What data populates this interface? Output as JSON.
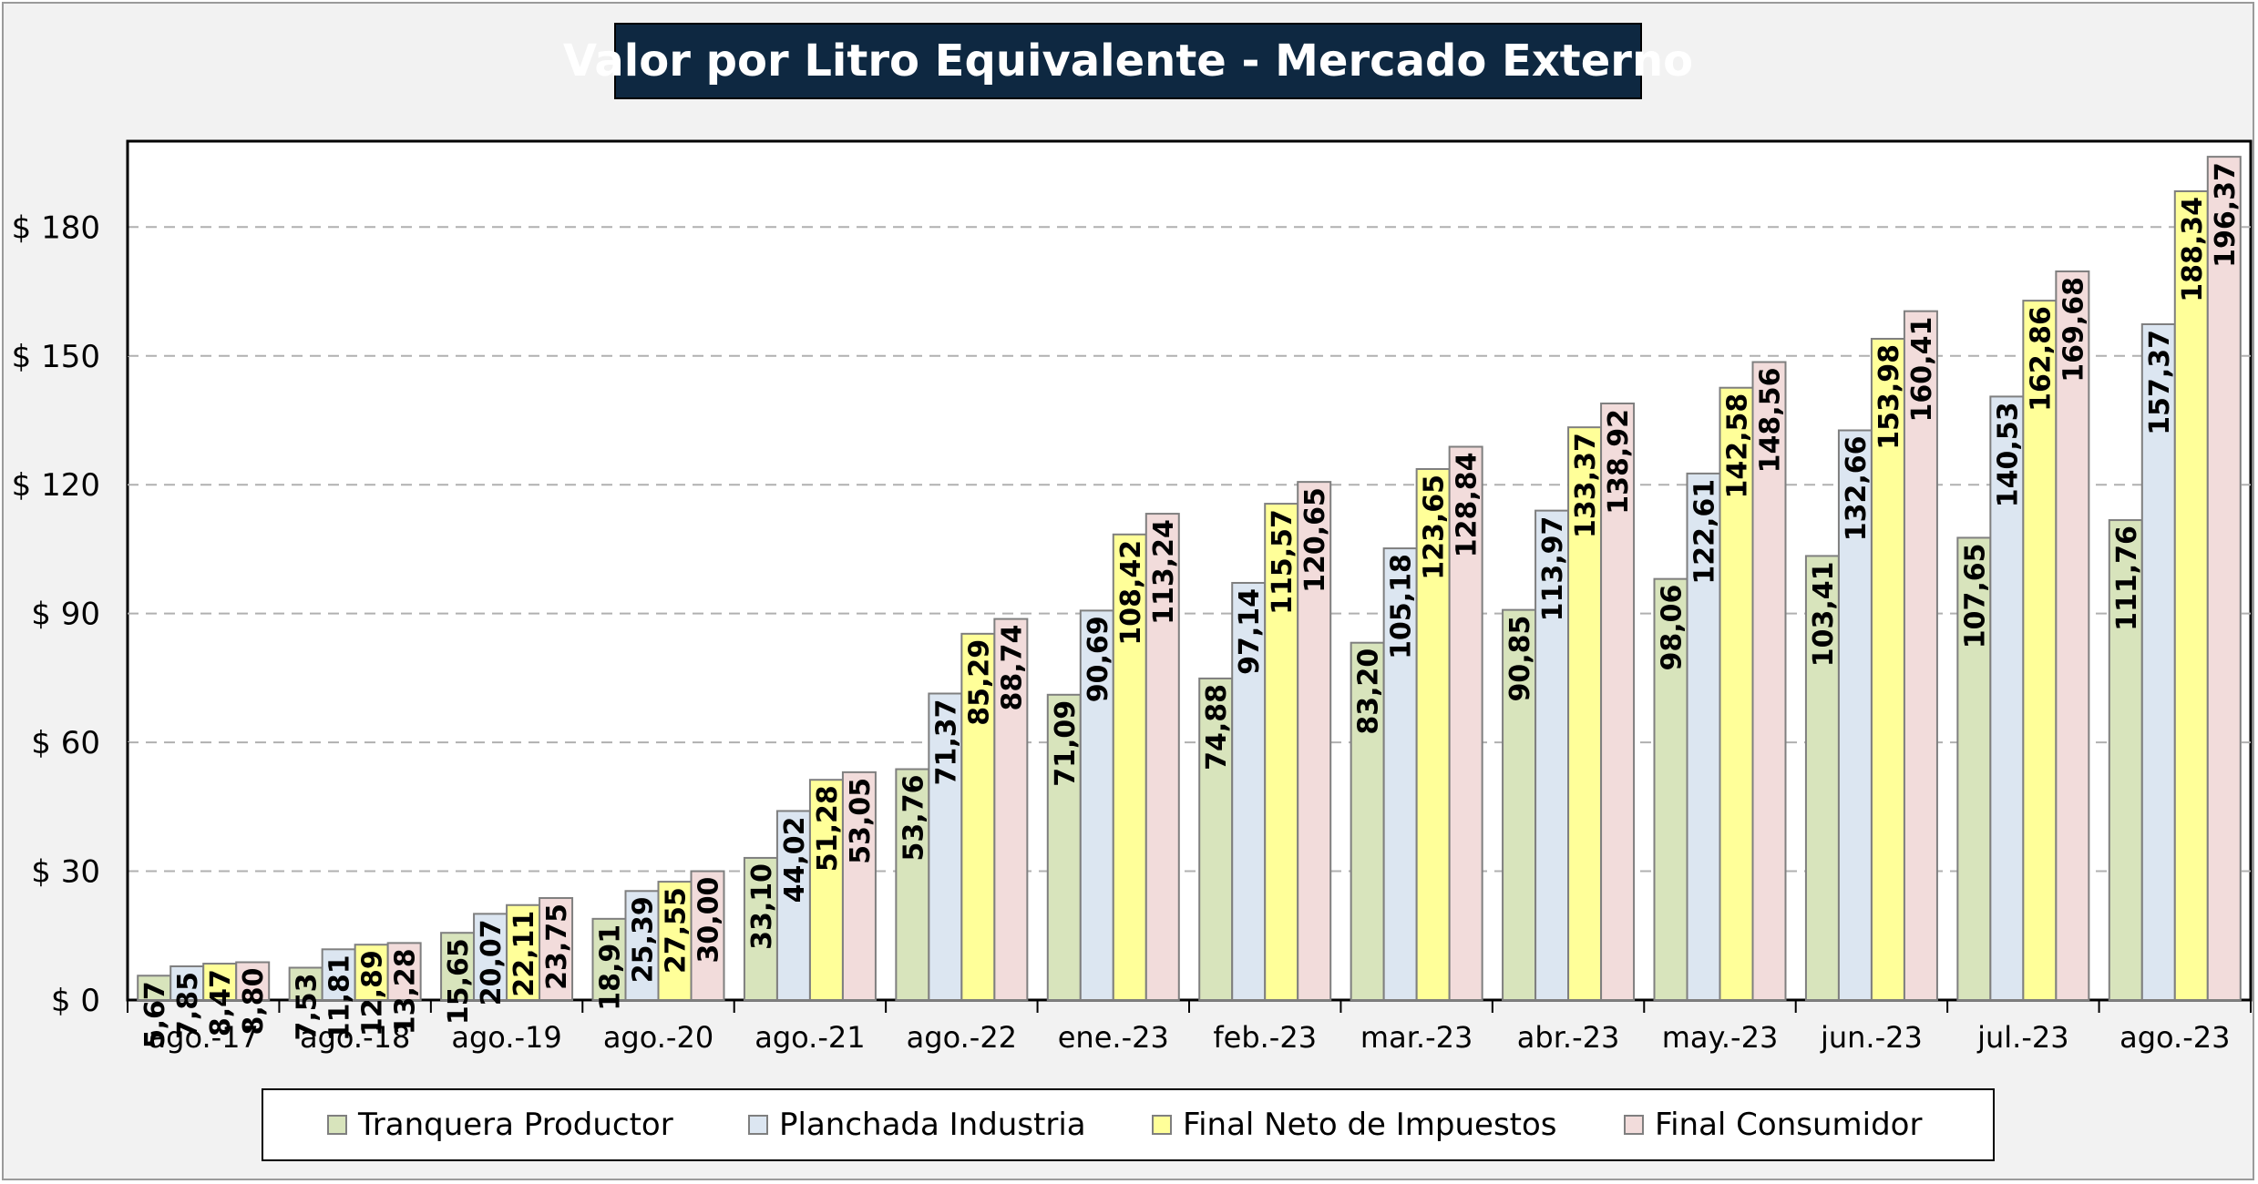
{
  "chart_data": {
    "type": "bar",
    "title": "Valor por Litro Equivalente - Mercado Externo",
    "xlabel": "",
    "ylabel": "",
    "ylim": [
      0,
      200
    ],
    "y_ticks": [
      0,
      30,
      60,
      90,
      120,
      150,
      180
    ],
    "y_tick_labels": [
      "$ 0",
      "$ 30",
      "$ 60",
      "$ 90",
      "$ 120",
      "$ 150",
      "$ 180"
    ],
    "grid": true,
    "legend_position": "bottom",
    "categories": [
      "ago.-17",
      "ago.-18",
      "ago.-19",
      "ago.-20",
      "ago.-21",
      "ago.-22",
      "ene.-23",
      "feb.-23",
      "mar.-23",
      "abr.-23",
      "may.-23",
      "jun.-23",
      "jul.-23",
      "ago.-23"
    ],
    "series": [
      {
        "name": "Tranquera Productor",
        "color": "#d8e4bc",
        "values": [
          5.67,
          7.53,
          15.65,
          18.91,
          33.1,
          53.76,
          71.09,
          74.88,
          83.2,
          90.85,
          98.06,
          103.41,
          107.65,
          111.76
        ],
        "labels": [
          "5,67",
          "7,53",
          "15,65",
          "18,91",
          "33,10",
          "53,76",
          "71,09",
          "74,88",
          "83,20",
          "90,85",
          "98,06",
          "103,41",
          "107,65",
          "111,76"
        ]
      },
      {
        "name": "Planchada Industria",
        "color": "#dce6f1",
        "values": [
          7.85,
          11.81,
          20.07,
          25.39,
          44.02,
          71.37,
          90.69,
          97.14,
          105.18,
          113.97,
          122.61,
          132.66,
          140.53,
          157.37
        ],
        "labels": [
          "7,85",
          "11,81",
          "20,07",
          "25,39",
          "44,02",
          "71,37",
          "90,69",
          "97,14",
          "105,18",
          "113,97",
          "122,61",
          "132,66",
          "140,53",
          "157,37"
        ]
      },
      {
        "name": "Final Neto de Impuestos",
        "color": "#ffff99",
        "values": [
          8.47,
          12.89,
          22.11,
          27.55,
          51.28,
          85.29,
          108.42,
          115.57,
          123.65,
          133.37,
          142.58,
          153.98,
          162.86,
          188.34
        ],
        "labels": [
          "8,47",
          "12,89",
          "22,11",
          "27,55",
          "51,28",
          "85,29",
          "108,42",
          "115,57",
          "123,65",
          "133,37",
          "142,58",
          "153,98",
          "162,86",
          "188,34"
        ]
      },
      {
        "name": "Final Consumidor",
        "color": "#f2dcdb",
        "values": [
          8.8,
          13.28,
          23.75,
          30.0,
          53.05,
          88.74,
          113.24,
          120.65,
          128.84,
          138.92,
          148.56,
          160.41,
          169.68,
          196.37
        ],
        "labels": [
          "8,80",
          "13,28",
          "23,75",
          "30,00",
          "53,05",
          "88,74",
          "113,24",
          "120,65",
          "128,84",
          "138,92",
          "148,56",
          "160,41",
          "169,68",
          "196,37"
        ]
      }
    ]
  }
}
